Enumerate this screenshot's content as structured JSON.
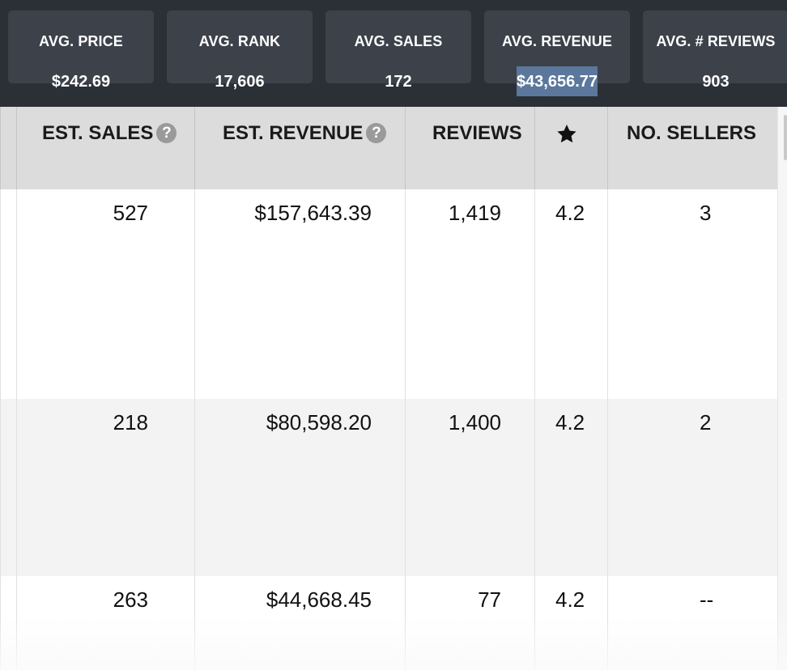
{
  "stats": [
    {
      "label": "AVG. PRICE",
      "value": "$242.69",
      "selected": false
    },
    {
      "label": "AVG. RANK",
      "value": "17,606",
      "selected": false
    },
    {
      "label": "AVG. SALES",
      "value": "172",
      "selected": false
    },
    {
      "label": "AVG. REVENUE",
      "value": "$43,656.77",
      "selected": true
    },
    {
      "label": "AVG. # REVIEWS",
      "value": "903",
      "selected": false
    }
  ],
  "table": {
    "headers": {
      "est_sales": "EST. SALES",
      "est_revenue": "EST. REVENUE",
      "reviews": "REVIEWS",
      "rating_icon": "star-icon",
      "no_sellers": "NO. SELLERS",
      "help_glyph": "?"
    },
    "rows": [
      {
        "est_sales": "527",
        "est_revenue": "$157,643.39",
        "reviews": "1,419",
        "rating": "4.2",
        "no_sellers": "3"
      },
      {
        "est_sales": "218",
        "est_revenue": "$80,598.20",
        "reviews": "1,400",
        "rating": "4.2",
        "no_sellers": "2"
      },
      {
        "est_sales": "263",
        "est_revenue": "$44,668.45",
        "reviews": "77",
        "rating": "4.2",
        "no_sellers": "--"
      }
    ]
  },
  "colors": {
    "stats_background": "#2b2f36",
    "stat_card": "#3d414a",
    "selection_highlight": "#5b789c",
    "header_background": "#dcdcdc",
    "alt_row_background": "#f3f3f3",
    "help_icon": "#9a9a9a"
  }
}
